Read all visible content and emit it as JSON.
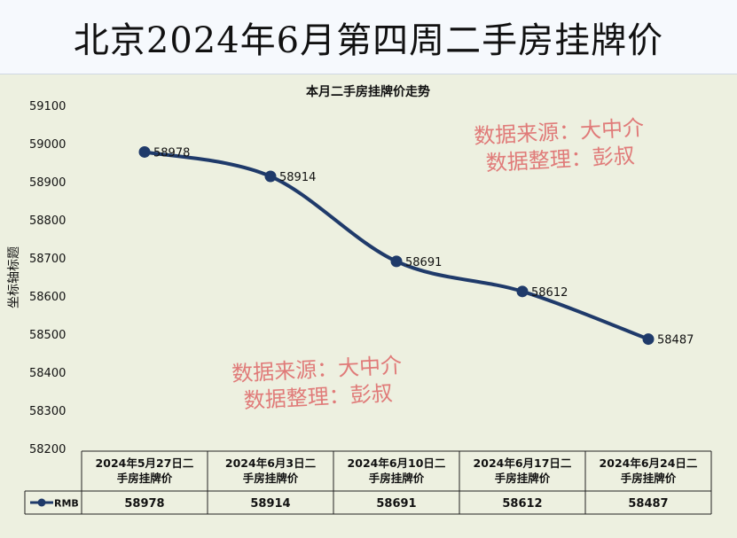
{
  "page_title": "北京2024年6月第四周二手房挂牌价",
  "watermark": {
    "line1": "数据来源：大中介",
    "line2": "数据整理：彭叔"
  },
  "chart_data": {
    "type": "line",
    "title": "本月二手房挂牌价走势",
    "xlabel": "",
    "ylabel": "坐标轴标题",
    "ylim": [
      58200,
      59100
    ],
    "yticks": [
      59100,
      59000,
      58900,
      58800,
      58700,
      58600,
      58500,
      58400,
      58300,
      58200
    ],
    "categories": [
      "2024年5月27日二手房挂牌价",
      "2024年6月3日二手房挂牌价",
      "2024年6月10日二手房挂牌价",
      "2024年6月17日二手房挂牌价",
      "2024年6月24日二手房挂牌价"
    ],
    "series": [
      {
        "name": "RMB",
        "values": [
          58978,
          58914,
          58691,
          58612,
          58487
        ]
      }
    ],
    "data_labels": true,
    "data_table": true,
    "line_color": "#1f3a6a"
  }
}
